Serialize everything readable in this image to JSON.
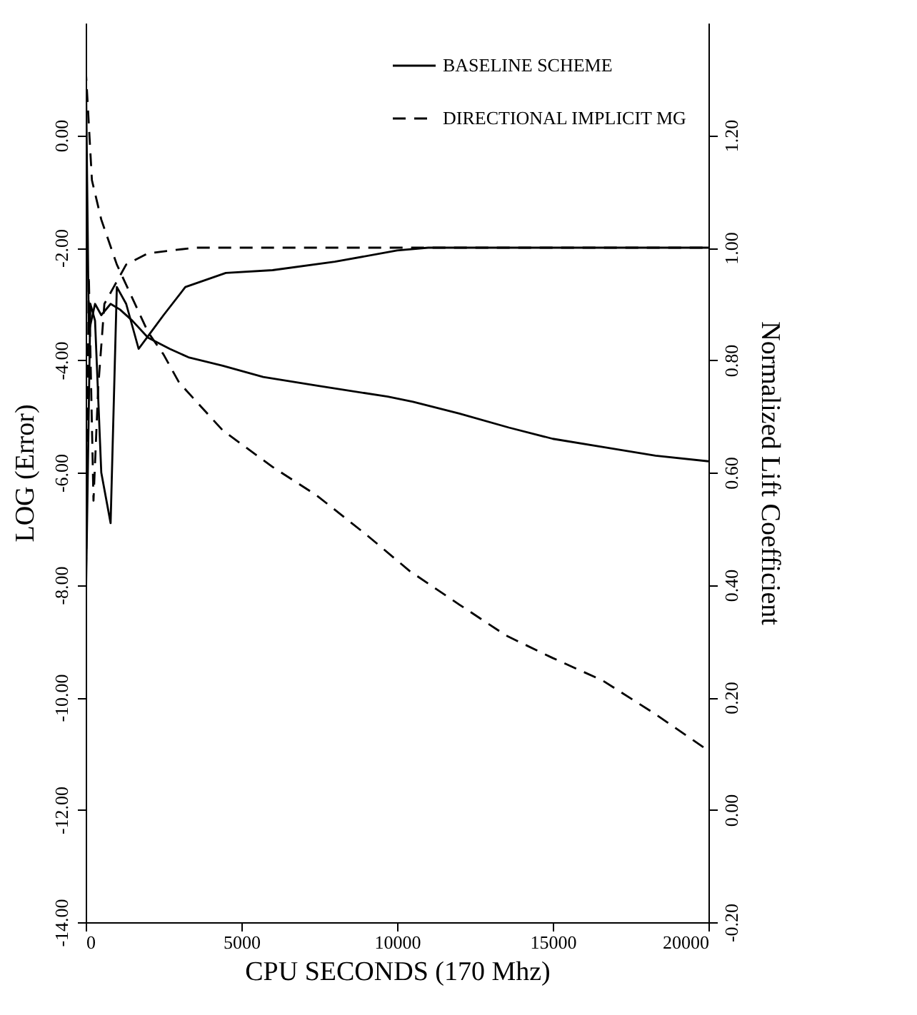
{
  "chart_data": {
    "type": "line",
    "xlabel": "CPU SECONDS (170 Mhz)",
    "ylabel": "LOG (Error)",
    "y2label": "Normalized Lift Coefficient",
    "xlim": [
      0,
      20000
    ],
    "xticks": [
      0,
      5000,
      10000,
      15000,
      20000
    ],
    "ylim": [
      -14,
      2
    ],
    "yticks": [
      {
        "value": -14,
        "label": "-14.00"
      },
      {
        "value": -12,
        "label": "-12.00"
      },
      {
        "value": -10,
        "label": "-10.00"
      },
      {
        "value": -8,
        "label": "-8.00"
      },
      {
        "value": -6,
        "label": "-6.00"
      },
      {
        "value": -4,
        "label": "-4.00"
      },
      {
        "value": -2,
        "label": "-2.00"
      },
      {
        "value": 0,
        "label": "0.00"
      }
    ],
    "y2lim": [
      -0.2,
      1.4
    ],
    "y2ticks": [
      {
        "value": -0.2,
        "label": "-0.20"
      },
      {
        "value": 0,
        "label": "0.00"
      },
      {
        "value": 0.2,
        "label": "0.20"
      },
      {
        "value": 0.4,
        "label": "0.40"
      },
      {
        "value": 0.6,
        "label": "0.60"
      },
      {
        "value": 0.8,
        "label": "0.80"
      },
      {
        "value": 1,
        "label": "1.00"
      },
      {
        "value": 1.2,
        "label": "1.20"
      }
    ],
    "grid": false,
    "legend": "top right",
    "series": [
      {
        "name": "BASELINE SCHEME",
        "color": "#000000",
        "line_style": "solid",
        "axis": "y",
        "x": [
          0,
          100,
          300,
          500,
          800,
          1100,
          1500,
          2000,
          2700,
          3300,
          4400,
          5700,
          7480,
          9700,
          10510,
          12000,
          13590,
          15000,
          16660,
          18300,
          20000
        ],
        "values": [
          1.5,
          -3.5,
          -3.0,
          -3.2,
          -3.0,
          -3.1,
          -3.3,
          -3.6,
          -3.8,
          -3.95,
          -4.1,
          -4.3,
          -4.46,
          -4.65,
          -4.74,
          -4.95,
          -5.2,
          -5.4,
          -5.55,
          -5.7,
          -5.8
        ]
      },
      {
        "name": "DIRECTIONAL IMPLICIT MG",
        "color": "#000000",
        "line_style": "dashed",
        "axis": "y",
        "x": [
          0,
          200,
          500,
          1000,
          1500,
          2000,
          2500,
          3000,
          4400,
          6000,
          7400,
          9000,
          10400,
          12000,
          13500,
          15000,
          16600,
          18300,
          20000
        ],
        "values": [
          1.2,
          -0.8,
          -1.5,
          -2.3,
          -2.9,
          -3.5,
          -3.9,
          -4.4,
          -5.25,
          -5.9,
          -6.4,
          -7.1,
          -7.75,
          -8.35,
          -8.9,
          -9.3,
          -9.7,
          -10.3,
          -10.95
        ]
      },
      {
        "color": "#000000",
        "line_style": "solid",
        "axis": "y2",
        "x": [
          0,
          150,
          300,
          500,
          800,
          1000,
          1300,
          1700,
          2100,
          2500,
          3200,
          4500,
          6000,
          8000,
          10000,
          11000,
          20000
        ],
        "values": [
          0.35,
          0.9,
          0.87,
          0.6,
          0.51,
          0.93,
          0.9,
          0.82,
          0.85,
          0.88,
          0.93,
          0.955,
          0.96,
          0.975,
          0.995,
          1.0,
          1.0
        ]
      },
      {
        "color": "#000000",
        "line_style": "dashed",
        "axis": "y2",
        "x": [
          0,
          100,
          250,
          400,
          600,
          900,
          1300,
          2000,
          3500,
          20000
        ],
        "values": [
          0.35,
          0.95,
          0.55,
          0.75,
          0.9,
          0.93,
          0.97,
          0.99,
          1.0,
          1.0
        ]
      }
    ]
  }
}
